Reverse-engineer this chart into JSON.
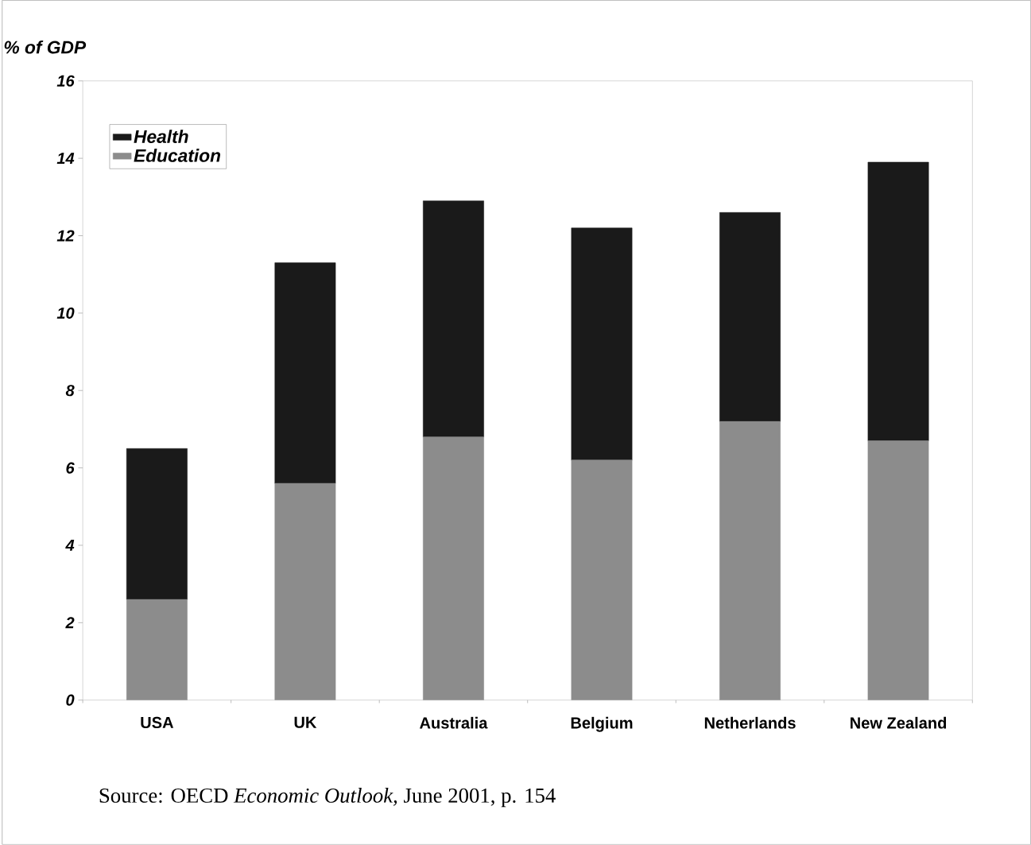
{
  "chart_data": {
    "type": "bar",
    "stacked": true,
    "ylabel": "% of GDP",
    "categories": [
      "USA",
      "UK",
      "Australia",
      "Belgium",
      "Netherlands",
      "New Zealand"
    ],
    "series": [
      {
        "name": "Education",
        "color": "#8c8c8c",
        "values": [
          2.6,
          5.6,
          6.8,
          6.2,
          7.2,
          6.7
        ]
      },
      {
        "name": "Health",
        "color": "#1a1a1a",
        "values": [
          3.9,
          5.7,
          6.1,
          6.0,
          5.4,
          7.2
        ]
      }
    ],
    "ylim": [
      0,
      16
    ],
    "yticks": [
      0,
      2,
      4,
      6,
      8,
      10,
      12,
      14,
      16
    ],
    "legend": "top left",
    "annotations": [
      "Source: OECD *Economic Outlook,* June 2001, p. 154"
    ]
  }
}
